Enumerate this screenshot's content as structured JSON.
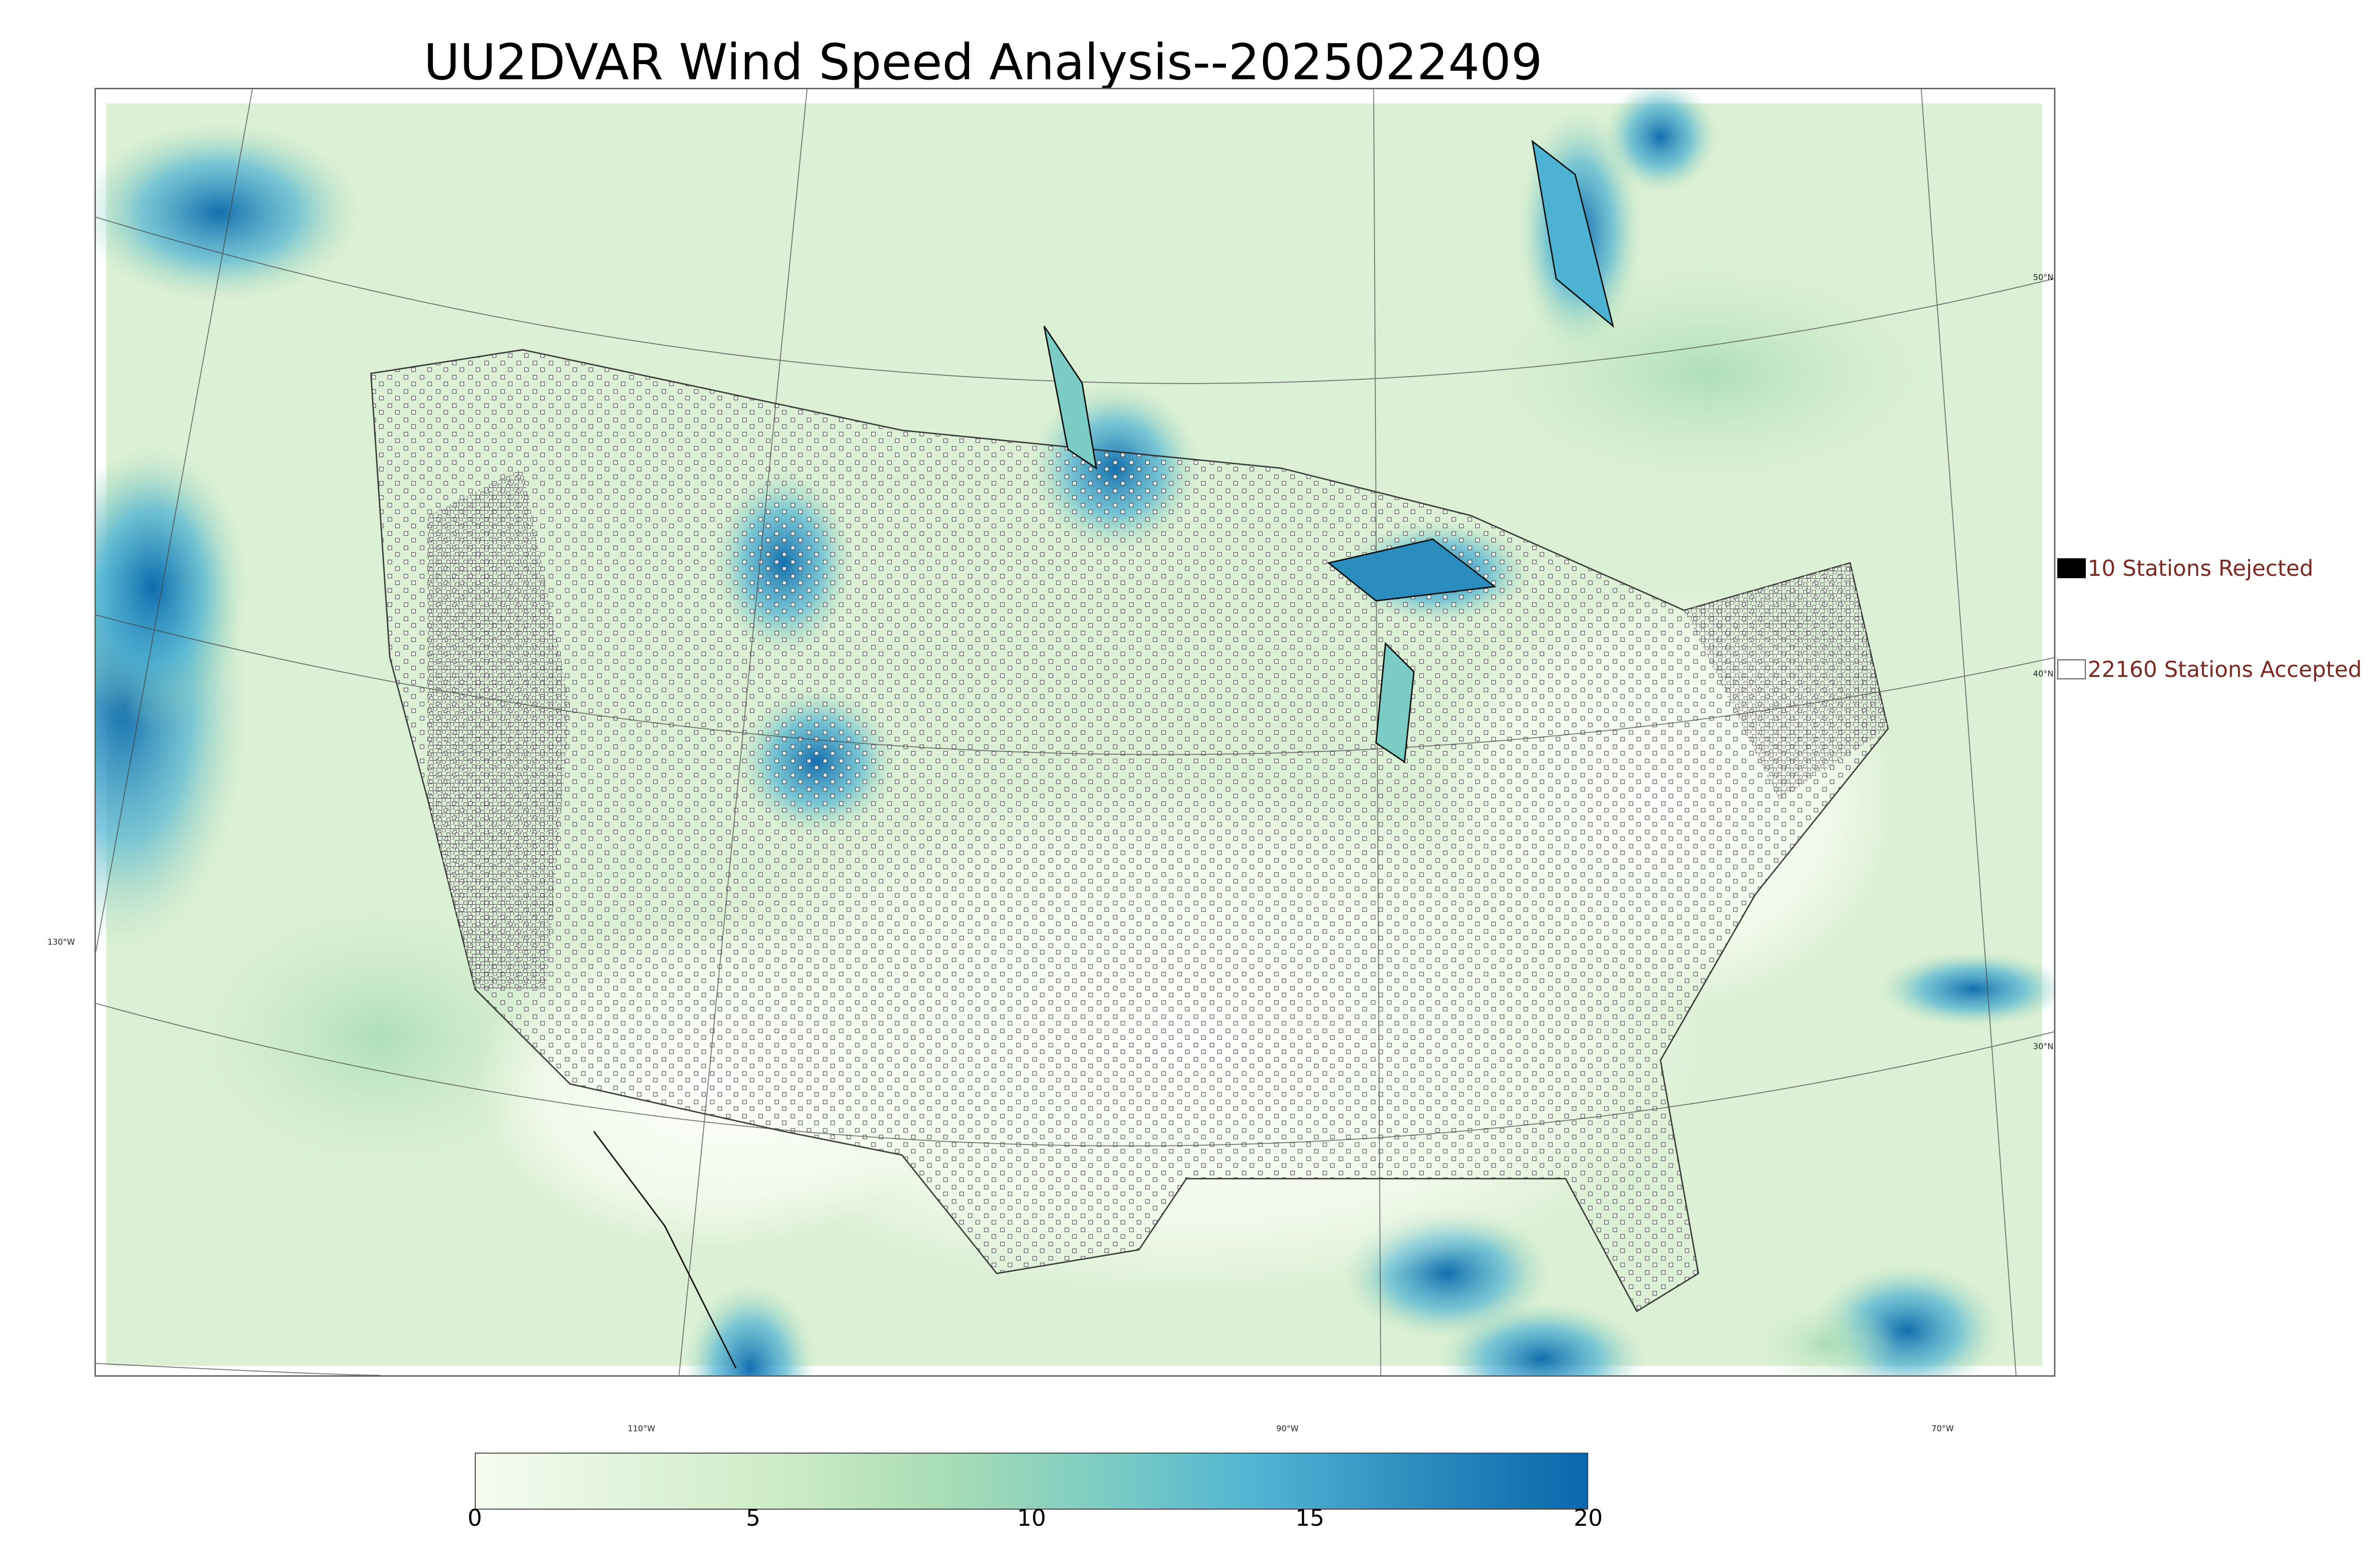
{
  "title": "UU2DVAR Wind Speed Analysis--2025022409",
  "map": {
    "variable": "wind speed",
    "colormap": "GnBu",
    "lat_labels": [
      "50°N",
      "40°N",
      "30°N"
    ],
    "lon_labels": [
      "130°W",
      "110°W",
      "90°W",
      "70°W"
    ]
  },
  "legend": {
    "rejected_label": "10 Stations Rejected",
    "accepted_label": "22160 Stations Accepted",
    "rejected_color": "#000000",
    "accepted_color": "#ffffff",
    "text_color": "#7a2a22"
  },
  "colorbar": {
    "min": 0,
    "max": 20,
    "ticks": [
      "0",
      "5",
      "10",
      "15",
      "20"
    ],
    "colors": [
      "#f7fcf0",
      "#e0f3db",
      "#ccebc5",
      "#a8ddb5",
      "#7bccc4",
      "#4eb3d3",
      "#2b8cbe",
      "#0868ac"
    ]
  }
}
